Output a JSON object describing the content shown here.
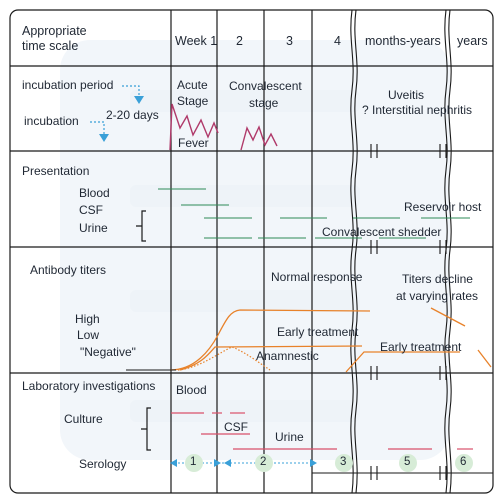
{
  "header": {
    "scale_label_line1": "Appropriate",
    "scale_label_line2": "time scale",
    "columns": [
      "Week 1",
      "2",
      "3",
      "4",
      "months-years",
      "years"
    ]
  },
  "incubation": {
    "period_label": "incubation period",
    "label": "incubation",
    "days": "2-20 days",
    "acute_line1": "Acute",
    "acute_line2": "Stage",
    "fever": "Fever",
    "convalescent_line1": "Convalescent",
    "convalescent_line2": "stage",
    "uveitis": "Uveitis",
    "nephritis": "? Interstitial nephritis"
  },
  "presentation": {
    "title": "Presentation",
    "blood": "Blood",
    "csf": "CSF",
    "urine": "Urine",
    "reservoir": "Reservoir host",
    "shedder": "Convalescent shedder"
  },
  "antibody": {
    "title": "Antibody titers",
    "normal": "Normal response",
    "decline_line1": "Titers decline",
    "decline_line2": "at varying rates",
    "high": "High",
    "low": "Low",
    "negative": "\"Negative\"",
    "early_treatment_1": "Early treatment",
    "anamnestic": "Anamnestic",
    "early_treatment_2": "Early treatment"
  },
  "lab": {
    "title": "Laboratory investigations",
    "blood": "Blood",
    "culture": "Culture",
    "csf": "CSF",
    "urine": "Urine",
    "serology": "Serology",
    "markers": [
      "1",
      "2",
      "3",
      "5",
      "6"
    ]
  },
  "colors": {
    "grid": "#1a1a1a",
    "fever": "#b03a6a",
    "green": "#2e8b57",
    "orange": "#e8822a",
    "red": "#d9506a",
    "blue": "#3aa0d8",
    "marker_fill": "#d7ecd7"
  }
}
